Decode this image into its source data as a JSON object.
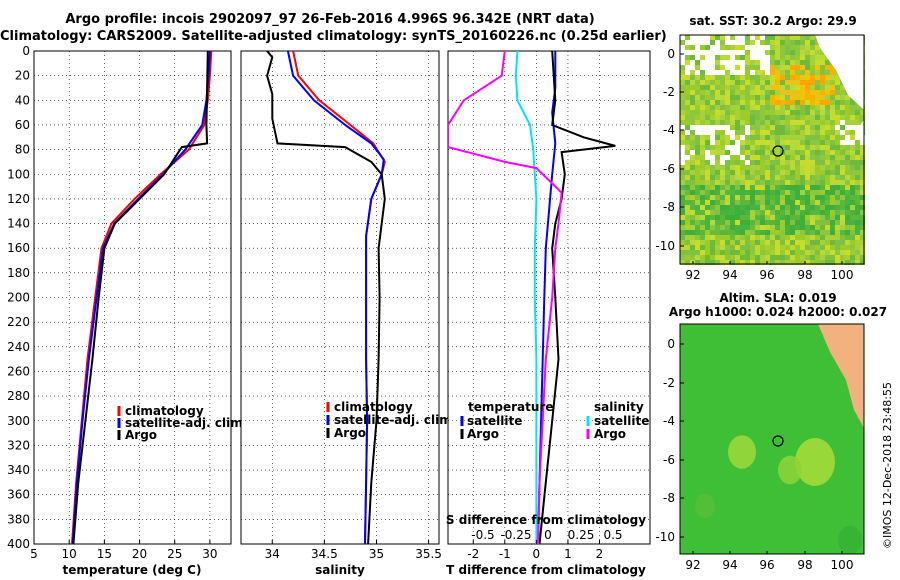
{
  "header": {
    "line1": "Argo profile: incois 2902097_97 26-Feb-2016 4.996S 96.342E (NRT data)",
    "line2": "Climatology: CARS2009. Satellite-adjusted climatology: synTS_20160226.nc (0.25d earlier)"
  },
  "side_stamp": "©IMOS 12-Dec-2018 23:48:55",
  "colors": {
    "climatology": "#ff0000",
    "satellite": "#0000ff",
    "argo": "#000000",
    "t_sat": "#00e5ff",
    "s_sat": "#ff00ff"
  },
  "chart_data": [
    {
      "type": "line",
      "id": "temp",
      "xlabel": "temperature (deg C)",
      "ylabel": "",
      "xlim": [
        5,
        33
      ],
      "ylim": [
        400,
        0
      ],
      "xticks": [
        5,
        10,
        15,
        20,
        25,
        30
      ],
      "yticks": [
        0,
        20,
        40,
        60,
        80,
        100,
        120,
        140,
        160,
        180,
        200,
        220,
        240,
        260,
        280,
        300,
        320,
        340,
        360,
        380,
        400
      ],
      "legend": [
        "climatology",
        "satellite-adj. clim.",
        "Argo"
      ],
      "series": [
        {
          "name": "climatology",
          "color": "#ff0000",
          "points": [
            [
              30.2,
              0
            ],
            [
              30.0,
              20
            ],
            [
              29.7,
              40
            ],
            [
              29.2,
              60
            ],
            [
              27.0,
              80
            ],
            [
              23.0,
              100
            ],
            [
              19.3,
              120
            ],
            [
              16.0,
              140
            ],
            [
              14.6,
              160
            ],
            [
              13.7,
              200
            ],
            [
              12.6,
              250
            ],
            [
              11.8,
              300
            ],
            [
              11.0,
              350
            ],
            [
              10.4,
              400
            ]
          ]
        },
        {
          "name": "satellite-adj. clim.",
          "color": "#0000ff",
          "points": [
            [
              30.0,
              0
            ],
            [
              29.8,
              20
            ],
            [
              29.5,
              40
            ],
            [
              28.9,
              60
            ],
            [
              26.5,
              80
            ],
            [
              23.3,
              100
            ],
            [
              19.8,
              120
            ],
            [
              16.4,
              140
            ],
            [
              14.8,
              160
            ],
            [
              13.9,
              200
            ],
            [
              12.8,
              250
            ],
            [
              11.9,
              300
            ],
            [
              11.1,
              350
            ],
            [
              10.5,
              400
            ]
          ]
        },
        {
          "name": "Argo",
          "color": "#000000",
          "points": [
            [
              29.7,
              0
            ],
            [
              29.6,
              30
            ],
            [
              29.5,
              60
            ],
            [
              29.6,
              75
            ],
            [
              26.0,
              78
            ],
            [
              23.5,
              100
            ],
            [
              20.0,
              120
            ],
            [
              16.5,
              140
            ],
            [
              15.0,
              160
            ],
            [
              14.2,
              200
            ],
            [
              13.3,
              250
            ],
            [
              12.3,
              300
            ],
            [
              11.3,
              350
            ],
            [
              10.6,
              400
            ]
          ]
        }
      ]
    },
    {
      "type": "line",
      "id": "sal",
      "xlabel": "salinity",
      "ylabel": "",
      "xlim": [
        33.7,
        35.6
      ],
      "ylim": [
        400,
        0
      ],
      "xticks": [
        34,
        34.5,
        35,
        35.5
      ],
      "legend": [
        "climatology",
        "satellite-adj. clim.",
        "Argo"
      ],
      "series": [
        {
          "name": "climatology",
          "color": "#ff0000",
          "points": [
            [
              34.2,
              0
            ],
            [
              34.25,
              20
            ],
            [
              34.45,
              40
            ],
            [
              34.75,
              60
            ],
            [
              34.97,
              75
            ],
            [
              35.08,
              90
            ],
            [
              35.05,
              100
            ],
            [
              34.95,
              120
            ],
            [
              34.9,
              150
            ],
            [
              34.9,
              200
            ],
            [
              34.9,
              250
            ],
            [
              34.91,
              300
            ],
            [
              34.9,
              350
            ],
            [
              34.89,
              400
            ]
          ]
        },
        {
          "name": "satellite-adj. clim.",
          "color": "#0000ff",
          "points": [
            [
              34.15,
              0
            ],
            [
              34.2,
              20
            ],
            [
              34.4,
              40
            ],
            [
              34.7,
              60
            ],
            [
              34.95,
              75
            ],
            [
              35.07,
              88
            ],
            [
              35.05,
              100
            ],
            [
              34.95,
              120
            ],
            [
              34.9,
              150
            ],
            [
              34.9,
              200
            ],
            [
              34.9,
              250
            ],
            [
              34.91,
              300
            ],
            [
              34.9,
              350
            ],
            [
              34.89,
              400
            ]
          ]
        },
        {
          "name": "Argo",
          "color": "#000000",
          "points": [
            [
              33.95,
              0
            ],
            [
              34.0,
              5
            ],
            [
              33.95,
              20
            ],
            [
              34.0,
              35
            ],
            [
              34.0,
              55
            ],
            [
              34.05,
              75
            ],
            [
              34.7,
              78
            ],
            [
              34.95,
              90
            ],
            [
              35.05,
              100
            ],
            [
              35.08,
              120
            ],
            [
              35.05,
              140
            ],
            [
              35.02,
              160
            ],
            [
              35.03,
              200
            ],
            [
              35.02,
              250
            ],
            [
              35.0,
              300
            ],
            [
              34.95,
              350
            ],
            [
              34.92,
              400
            ]
          ]
        }
      ]
    },
    {
      "type": "line",
      "id": "diff",
      "xlabel": "T difference from climatology",
      "xlim": [
        -2.8,
        3.6
      ],
      "ylim": [
        400,
        0
      ],
      "xticks": [
        -2,
        -1,
        0,
        1,
        2
      ],
      "top_axis": {
        "label": "S difference from climatology",
        "ticks": [
          "-0.5",
          "-0.25",
          "0",
          "0.25",
          "0.5"
        ]
      },
      "legend_left_title": "temperature",
      "legend_right_title": "salinity",
      "legend": {
        "t_sat": "satellite",
        "t_argo": "Argo",
        "s_sat": "satellite",
        "s_argo": "Argo"
      },
      "series": [
        {
          "name": "T satellite",
          "color": "#0000ff",
          "points": [
            [
              0.6,
              0
            ],
            [
              0.6,
              30
            ],
            [
              0.5,
              50
            ],
            [
              0.6,
              75
            ],
            [
              0.5,
              100
            ],
            [
              0.4,
              130
            ],
            [
              0.3,
              160
            ],
            [
              0.25,
              200
            ],
            [
              0.2,
              250
            ],
            [
              0.15,
              300
            ],
            [
              0.1,
              350
            ],
            [
              0.05,
              400
            ]
          ]
        },
        {
          "name": "T Argo",
          "color": "#000000",
          "points": [
            [
              0.5,
              0
            ],
            [
              0.6,
              40
            ],
            [
              0.5,
              60
            ],
            [
              1.5,
              70
            ],
            [
              2.5,
              77
            ],
            [
              0.8,
              82
            ],
            [
              0.9,
              100
            ],
            [
              0.8,
              120
            ],
            [
              0.6,
              140
            ],
            [
              0.5,
              160
            ],
            [
              0.6,
              200
            ],
            [
              0.7,
              250
            ],
            [
              0.5,
              300
            ],
            [
              0.3,
              350
            ],
            [
              0.1,
              400
            ]
          ]
        },
        {
          "name": "S satellite",
          "color": "#00e5ff",
          "points": [
            [
              -0.6,
              0
            ],
            [
              -0.65,
              20
            ],
            [
              -0.6,
              40
            ],
            [
              -0.2,
              60
            ],
            [
              -0.1,
              80
            ],
            [
              0.0,
              120
            ],
            [
              -0.05,
              160
            ],
            [
              -0.05,
              200
            ],
            [
              0.0,
              250
            ],
            [
              0.0,
              300
            ],
            [
              0.0,
              350
            ],
            [
              0.0,
              400
            ]
          ]
        },
        {
          "name": "S Argo",
          "color": "#ff00ff",
          "points": [
            [
              -1.0,
              0
            ],
            [
              -1.1,
              20
            ],
            [
              -2.3,
              40
            ],
            [
              -2.8,
              60
            ],
            [
              -2.8,
              78
            ],
            [
              -1.0,
              90
            ],
            [
              0.0,
              95
            ],
            [
              0.8,
              115
            ],
            [
              0.7,
              140
            ],
            [
              0.6,
              160
            ],
            [
              0.5,
              200
            ],
            [
              0.3,
              250
            ],
            [
              0.2,
              300
            ],
            [
              0.1,
              350
            ],
            [
              0.05,
              400
            ]
          ]
        }
      ]
    }
  ],
  "map_sst": {
    "title": "sat. SST: 30.2  Argo: 29.9",
    "xticks": [
      "92",
      "94",
      "96",
      "98",
      "100"
    ],
    "yticks": [
      "0",
      "-2",
      "-4",
      "-6",
      "-8",
      "-10"
    ]
  },
  "map_sla": {
    "title1": "Altim. SLA: 0.019",
    "title2": "Argo h1000: 0.024  h2000: 0.027",
    "xticks": [
      "92",
      "94",
      "96",
      "98",
      "100"
    ],
    "yticks": [
      "0",
      "-2",
      "-4",
      "-6",
      "-8",
      "-10"
    ]
  }
}
